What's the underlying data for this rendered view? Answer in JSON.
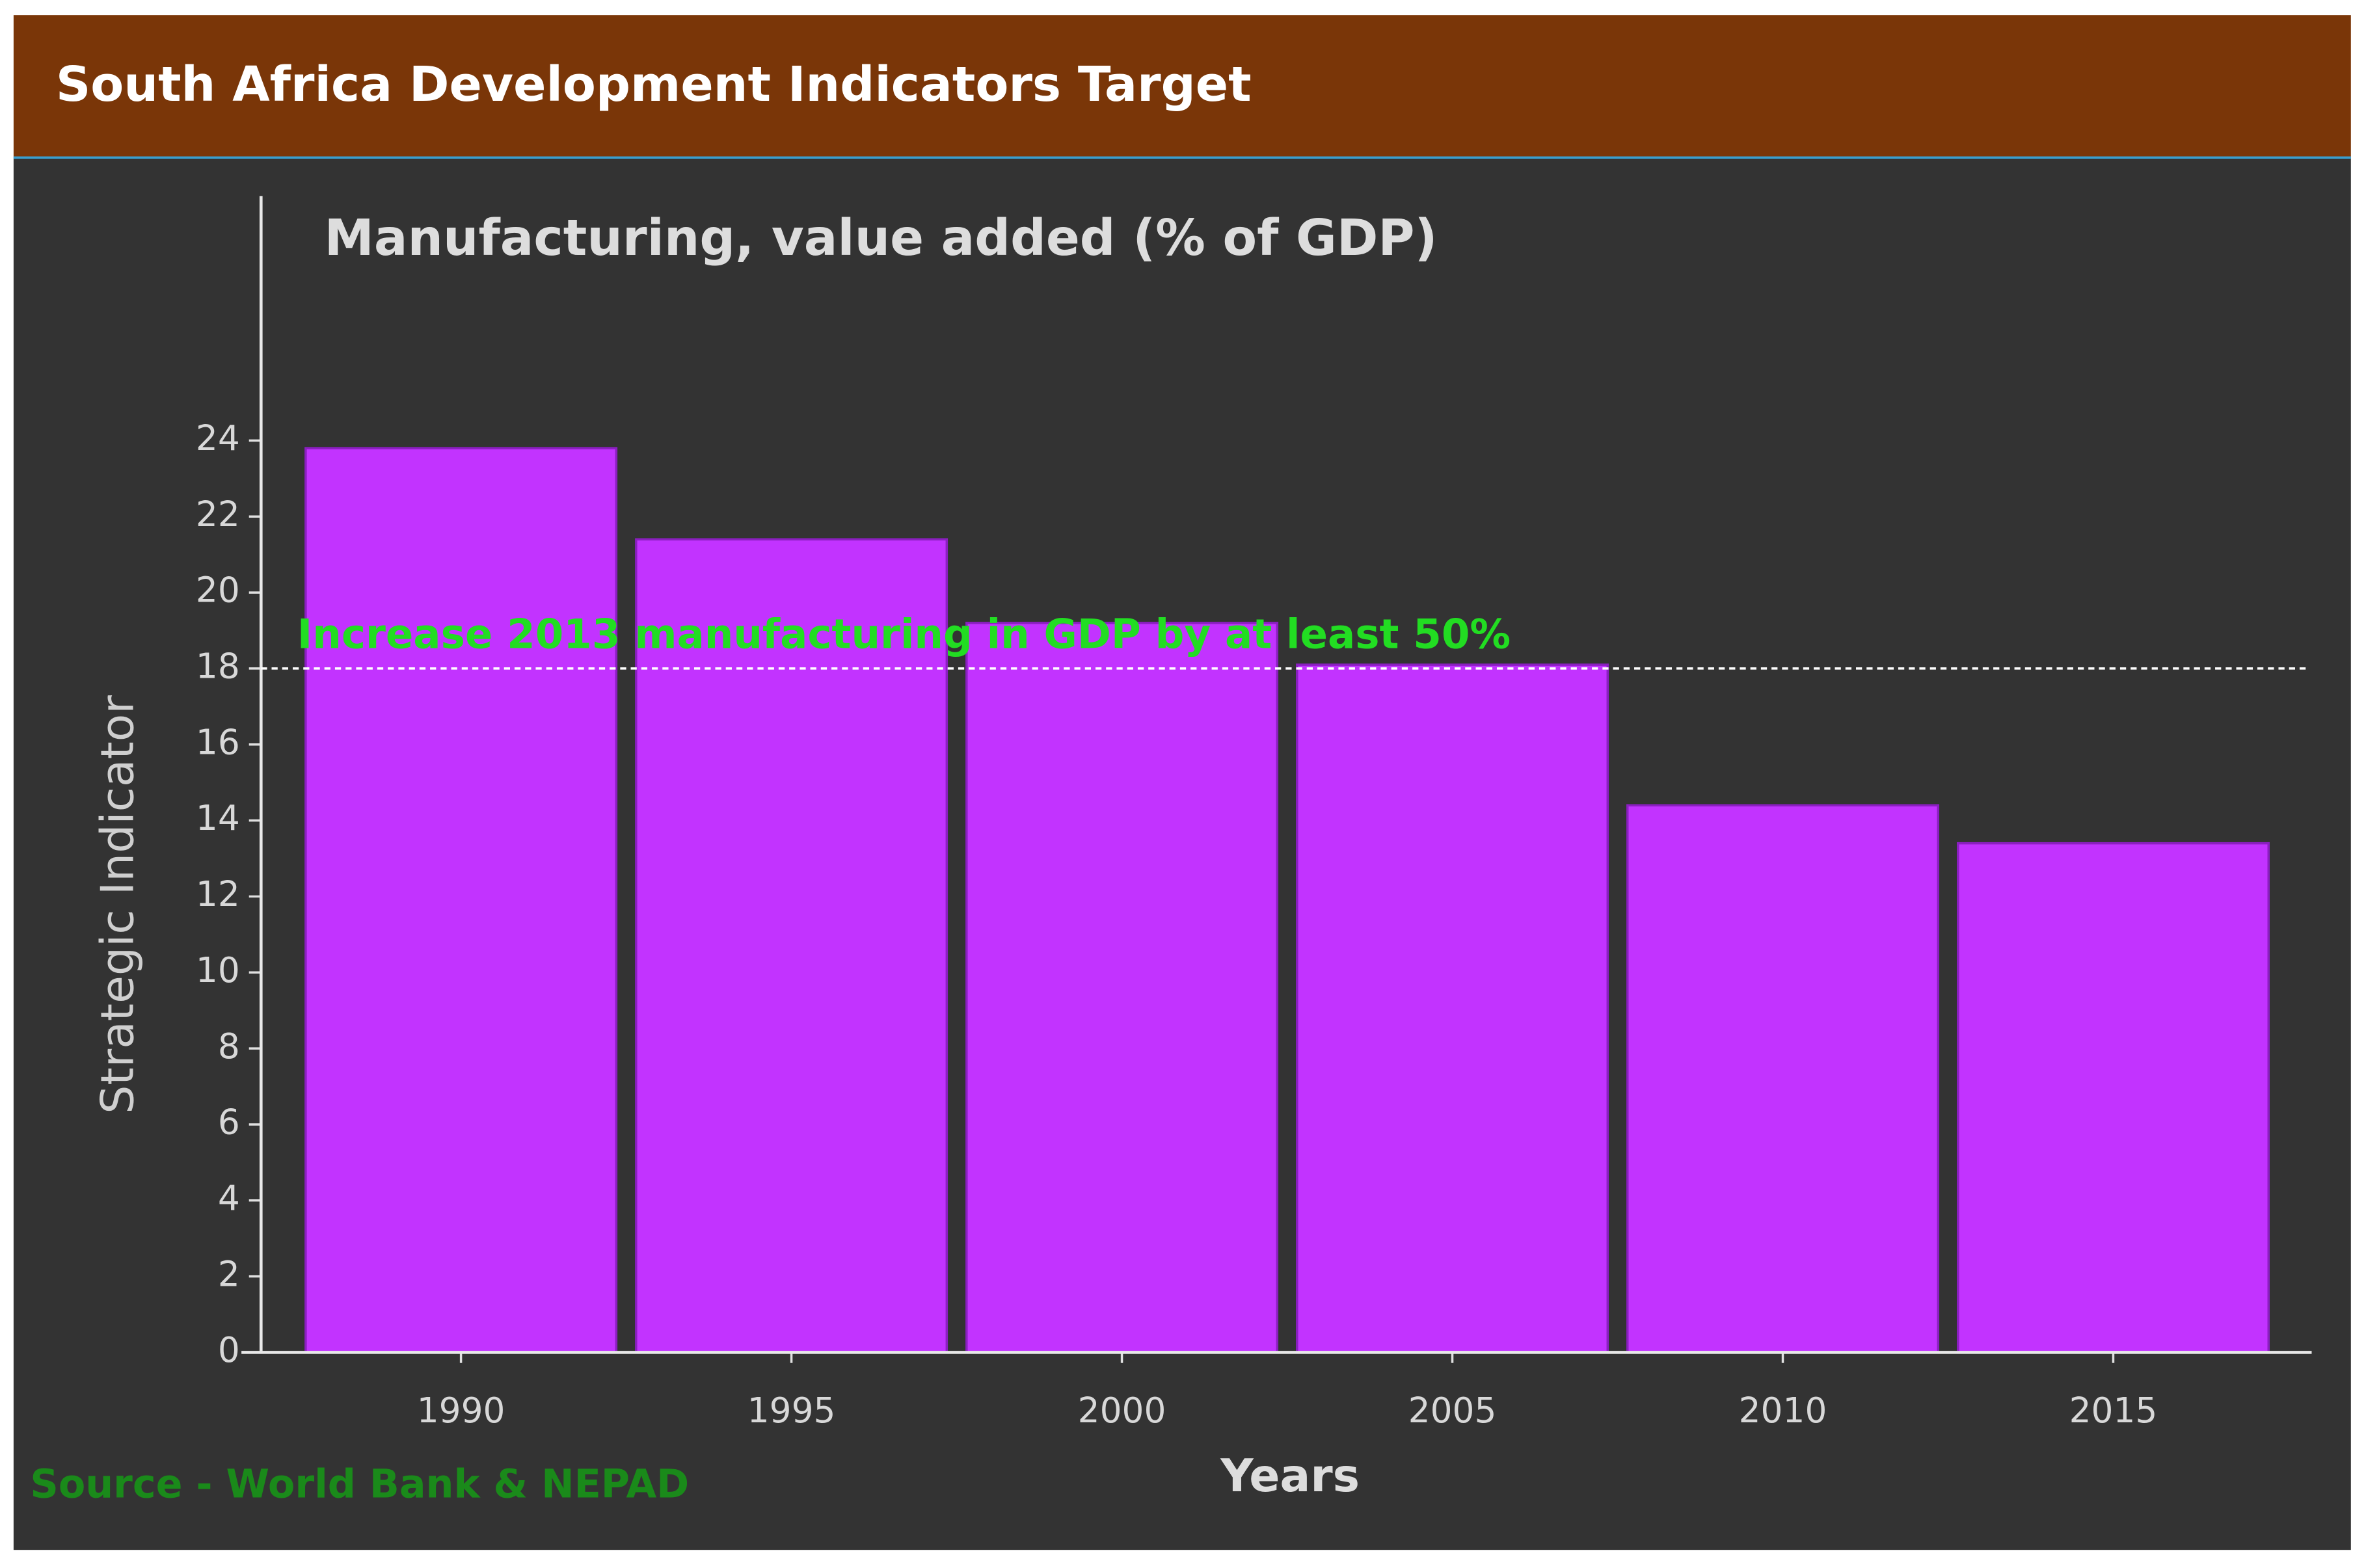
{
  "chart_data": {
    "type": "bar",
    "header": "South Africa Development Indicators Target",
    "title": "Manufacturing, value added (% of GDP)",
    "x_label": "Years",
    "y_label": "Strategic Indicator",
    "source": "Source - World Bank & NEPAD",
    "categories": [
      "1990",
      "1995",
      "2000",
      "2005",
      "2010",
      "2015"
    ],
    "values": [
      23.8,
      21.4,
      19.2,
      18.1,
      14.4,
      13.4
    ],
    "color": "#c233ff",
    "ylim": [
      0,
      30
    ],
    "yticks": [
      0,
      2,
      4,
      6,
      8,
      10,
      12,
      14,
      16,
      18,
      20,
      22,
      24
    ],
    "target": {
      "value": 18,
      "label": "Increase 2013 manufacturing in GDP by at least 50%"
    }
  }
}
